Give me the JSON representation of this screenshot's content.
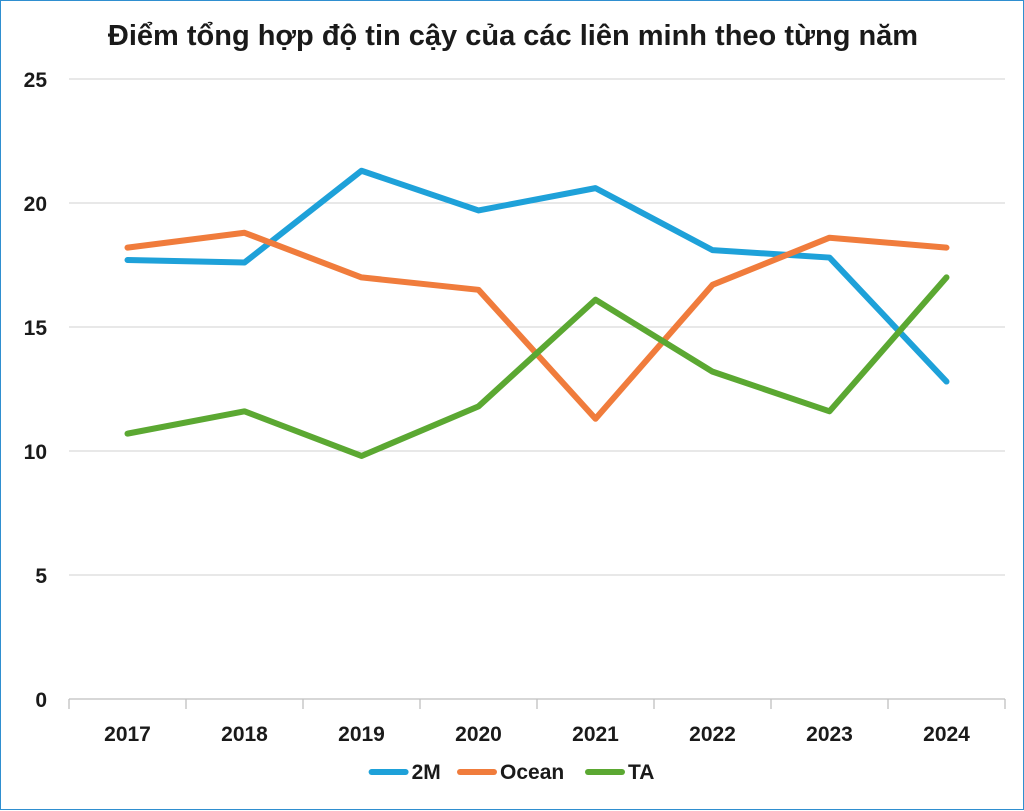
{
  "chart_data": {
    "type": "line",
    "title": "Điểm tổng hợp độ tin cậy của các liên minh theo từng năm",
    "xlabel": "",
    "ylabel": "",
    "categories": [
      "2017",
      "2018",
      "2019",
      "2020",
      "2021",
      "2022",
      "2023",
      "2024"
    ],
    "ylim": [
      0,
      25
    ],
    "yticks": [
      "0",
      "5",
      "10",
      "15",
      "20",
      "25"
    ],
    "grid": true,
    "legend_position": "bottom",
    "series": [
      {
        "name": "2M",
        "color": "#1ea1d9",
        "values": [
          17.7,
          17.6,
          21.3,
          19.7,
          20.6,
          18.1,
          17.8,
          12.8
        ]
      },
      {
        "name": "Ocean",
        "color": "#f07c3c",
        "values": [
          18.2,
          18.8,
          17.0,
          16.5,
          11.3,
          16.7,
          18.6,
          18.2
        ]
      },
      {
        "name": "TA",
        "color": "#5ba832",
        "values": [
          10.7,
          11.6,
          9.8,
          11.8,
          16.1,
          13.2,
          11.6,
          17.0
        ]
      }
    ]
  }
}
